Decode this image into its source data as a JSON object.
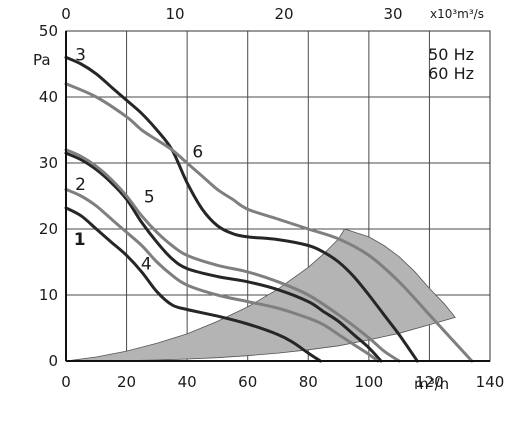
{
  "chart_data": {
    "type": "line",
    "title": "",
    "xlabel": "m³/h",
    "ylabel": "Pa",
    "top_axis_unit": "x10³m³/s",
    "xlim": [
      0,
      140
    ],
    "ylim": [
      0,
      50
    ],
    "top_axis_range": [
      0,
      38.89
    ],
    "x_ticks": [
      "0",
      "20",
      "40",
      "60",
      "80",
      "100",
      "120",
      "140"
    ],
    "y_ticks": [
      "0",
      "10",
      "20",
      "30",
      "40",
      "50"
    ],
    "top_ticks": [
      "0",
      "10",
      "20",
      "30"
    ],
    "grid": true,
    "legend_position": "top-right",
    "legend_entries": [
      "50 Hz",
      "60 Hz"
    ],
    "colors": {
      "dark_series": "#262626",
      "light_series": "#7f7f7f",
      "shaded_region": "#b4b4b4",
      "grid": "#4a4a4a"
    },
    "series": [
      {
        "name": "1",
        "shade": "dark",
        "x": [
          0,
          5,
          10,
          15,
          20,
          25,
          30,
          35,
          40,
          50,
          60,
          70,
          75,
          80,
          84
        ],
        "y": [
          23.2,
          22.0,
          20.0,
          18.0,
          16.0,
          13.5,
          10.5,
          8.5,
          7.8,
          6.8,
          5.6,
          4.0,
          2.8,
          1.2,
          0
        ]
      },
      {
        "name": "2",
        "shade": "dark",
        "x": [
          0,
          5,
          10,
          15,
          20,
          25,
          30,
          35,
          40,
          50,
          60,
          70,
          80,
          85,
          90,
          95,
          100,
          104
        ],
        "y": [
          31.5,
          30.5,
          29.0,
          27.0,
          24.5,
          21.0,
          18.0,
          15.5,
          14.0,
          12.8,
          12.0,
          10.8,
          9.0,
          7.5,
          6.0,
          4.0,
          2.0,
          0
        ]
      },
      {
        "name": "3",
        "shade": "dark",
        "x": [
          0,
          5,
          10,
          15,
          20,
          25,
          30,
          35,
          40,
          45,
          50,
          55,
          60,
          70,
          80,
          85,
          90,
          95,
          100,
          105,
          110,
          116
        ],
        "y": [
          46.0,
          45.0,
          43.5,
          41.5,
          39.5,
          37.5,
          35.0,
          32.0,
          27.0,
          23.0,
          20.5,
          19.3,
          18.8,
          18.4,
          17.5,
          16.5,
          15.0,
          12.8,
          10.0,
          7.0,
          4.0,
          0
        ]
      },
      {
        "name": "4",
        "shade": "light",
        "x": [
          0,
          5,
          10,
          15,
          20,
          25,
          30,
          35,
          40,
          50,
          60,
          70,
          80,
          85,
          90,
          95,
          100,
          103
        ],
        "y": [
          26.0,
          25.0,
          23.5,
          21.5,
          19.5,
          17.5,
          15.0,
          13.0,
          11.5,
          10.0,
          9.0,
          8.0,
          6.5,
          5.5,
          4.0,
          2.5,
          1.0,
          0
        ]
      },
      {
        "name": "5",
        "shade": "light",
        "x": [
          0,
          5,
          10,
          15,
          20,
          25,
          30,
          35,
          40,
          50,
          60,
          70,
          80,
          90,
          100,
          105,
          110
        ],
        "y": [
          32.0,
          31.0,
          29.5,
          27.5,
          25.0,
          22.0,
          19.5,
          17.5,
          16.0,
          14.5,
          13.5,
          12.0,
          10.0,
          7.0,
          3.5,
          1.5,
          0
        ]
      },
      {
        "name": "6",
        "shade": "light",
        "x": [
          0,
          10,
          20,
          25,
          30,
          35,
          40,
          45,
          50,
          55,
          60,
          70,
          80,
          90,
          100,
          110,
          120,
          125,
          130,
          134
        ],
        "y": [
          42.0,
          40.0,
          37.0,
          35.0,
          33.5,
          32.0,
          30.0,
          28.0,
          26.0,
          24.5,
          23.0,
          21.5,
          20.0,
          18.5,
          16.0,
          12.0,
          7.0,
          4.5,
          2.0,
          0
        ]
      }
    ],
    "shaded_region": {
      "x": [
        0,
        10,
        20,
        30,
        40,
        50,
        60,
        70,
        80,
        85,
        90,
        92,
        100,
        105,
        110,
        115,
        120,
        125,
        128.5,
        120,
        110,
        100,
        90,
        80,
        70,
        60,
        50,
        40,
        30,
        20,
        10,
        0
      ],
      "y": [
        0,
        0.6,
        1.5,
        2.7,
        4.1,
        6.0,
        8.2,
        10.9,
        14.2,
        16.2,
        18.5,
        20.0,
        18.8,
        17.5,
        15.8,
        13.6,
        11.0,
        8.6,
        6.6,
        5.5,
        4.2,
        3.2,
        2.3,
        1.7,
        1.2,
        0.8,
        0.5,
        0.3,
        0.15,
        0.05,
        0,
        0
      ]
    },
    "series_labels": [
      {
        "text": "1",
        "x": 4.5,
        "y": 17.6
      },
      {
        "text": "2",
        "x": 4.8,
        "y": 25.9
      },
      {
        "text": "3",
        "x": 4.8,
        "y": 45.5
      },
      {
        "text": "4",
        "x": 26.5,
        "y": 13.9
      },
      {
        "text": "5",
        "x": 27.5,
        "y": 24.0
      },
      {
        "text": "6",
        "x": 43.5,
        "y": 30.8
      }
    ]
  }
}
